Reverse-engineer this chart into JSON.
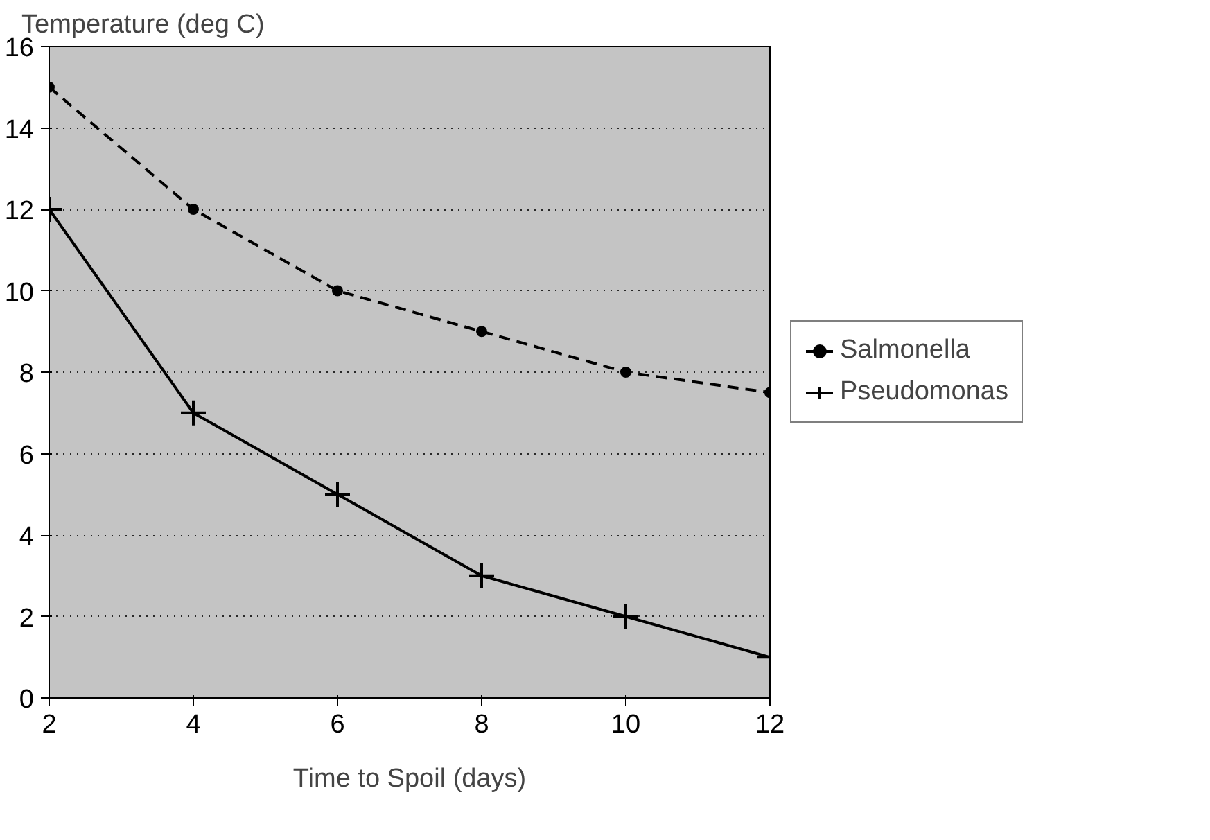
{
  "chart_data": {
    "type": "line",
    "xlabel": "Time to Spoil (days)",
    "ylabel": "Temperature (deg C)",
    "x": [
      2,
      4,
      6,
      8,
      10,
      12
    ],
    "series": [
      {
        "name": "Salmonella",
        "color": "#000000",
        "values": [
          15,
          12,
          10,
          9,
          8,
          7.5
        ],
        "marker": "circle",
        "line_style": "dashed"
      },
      {
        "name": "Pseudomonas",
        "color": "#000000",
        "values": [
          12,
          7,
          5,
          3,
          2,
          1
        ],
        "marker": "cross",
        "line_style": "solid"
      }
    ],
    "xlim": [
      2,
      12
    ],
    "ylim": [
      0,
      16
    ],
    "xticks": [
      2,
      4,
      6,
      8,
      10,
      12
    ],
    "yticks": [
      0,
      2,
      4,
      6,
      8,
      10,
      12,
      14,
      16
    ],
    "grid": "y",
    "legend": "right"
  }
}
